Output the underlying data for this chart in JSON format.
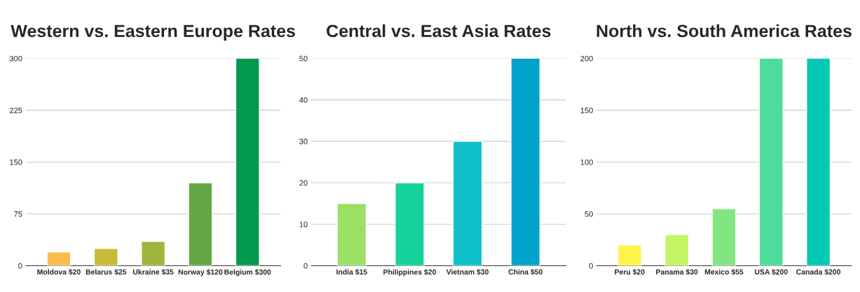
{
  "chart_data": [
    {
      "type": "bar",
      "title": "Western vs. Eastern Europe Rates",
      "categories": [
        "Moldova $20",
        "Belarus $25",
        "Ukraine $35",
        "Norway $120",
        "Belgium $300"
      ],
      "values": [
        20,
        25,
        35,
        120,
        300
      ],
      "colors": [
        "#fbbc4e",
        "#c9bb3a",
        "#9db53a",
        "#63a844",
        "#02994f"
      ],
      "ylim": [
        0,
        300
      ],
      "yticks": [
        0,
        75,
        150,
        225,
        300
      ],
      "grid": "y"
    },
    {
      "type": "bar",
      "title": "Central vs. East Asia Rates",
      "categories": [
        "India $15",
        "Philippines $20",
        "Vietnam $30",
        "China $50"
      ],
      "values": [
        15,
        20,
        30,
        50
      ],
      "colors": [
        "#9be064",
        "#14d39a",
        "#0fc0c9",
        "#00a3c9"
      ],
      "ylim": [
        0,
        50
      ],
      "yticks": [
        0,
        10,
        20,
        30,
        40,
        50
      ],
      "grid": "y"
    },
    {
      "type": "bar",
      "title": "North vs. South America Rates",
      "categories": [
        "Peru $20",
        "Panama $30",
        "Mexico $55",
        "USA $200",
        "Canada $200"
      ],
      "values": [
        20,
        30,
        55,
        200,
        200
      ],
      "colors": [
        "#fef44c",
        "#c4f464",
        "#82e582",
        "#4cdc9c",
        "#00c9b3"
      ],
      "ylim": [
        0,
        200
      ],
      "yticks": [
        0,
        50,
        100,
        150,
        200
      ],
      "grid": "y"
    }
  ]
}
